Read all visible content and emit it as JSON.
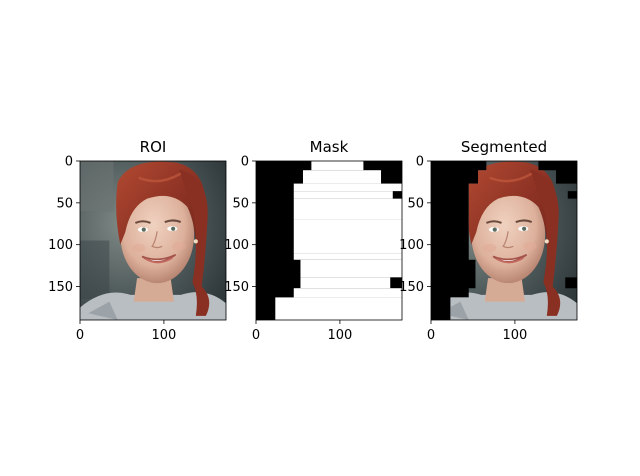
{
  "chart_data": [
    {
      "type": "image",
      "title": "ROI",
      "xlim": [
        0,
        174
      ],
      "ylim": [
        190,
        0
      ],
      "xticks": [
        0,
        100
      ],
      "yticks": [
        0,
        50,
        100,
        150
      ],
      "content": "photo of a smiling woman with red hair"
    },
    {
      "type": "image",
      "title": "Mask",
      "xlim": [
        0,
        174
      ],
      "ylim": [
        190,
        0
      ],
      "xticks": [
        0,
        100
      ],
      "yticks": [
        0,
        50,
        100,
        150
      ],
      "colors": {
        "foreground": "#ffffff",
        "background": "#000000"
      },
      "mask_regions": [
        [
          66,
          0,
          128,
          11
        ],
        [
          56,
          11,
          149,
          27
        ],
        [
          45,
          27,
          174,
          36
        ],
        [
          45,
          36,
          163,
          45
        ],
        [
          45,
          45,
          174,
          70
        ],
        [
          45,
          70,
          174,
          111
        ],
        [
          45,
          111,
          174,
          118
        ],
        [
          53,
          118,
          174,
          139
        ],
        [
          53,
          139,
          160,
          152
        ],
        [
          45,
          152,
          174,
          163
        ],
        [
          23,
          163,
          174,
          190
        ]
      ]
    },
    {
      "type": "image",
      "title": "Segmented",
      "xlim": [
        0,
        174
      ],
      "ylim": [
        190,
        0
      ],
      "xticks": [
        0,
        100
      ],
      "yticks": [
        0,
        50,
        100,
        150
      ],
      "content": "photo masked by the mask, background black"
    }
  ]
}
